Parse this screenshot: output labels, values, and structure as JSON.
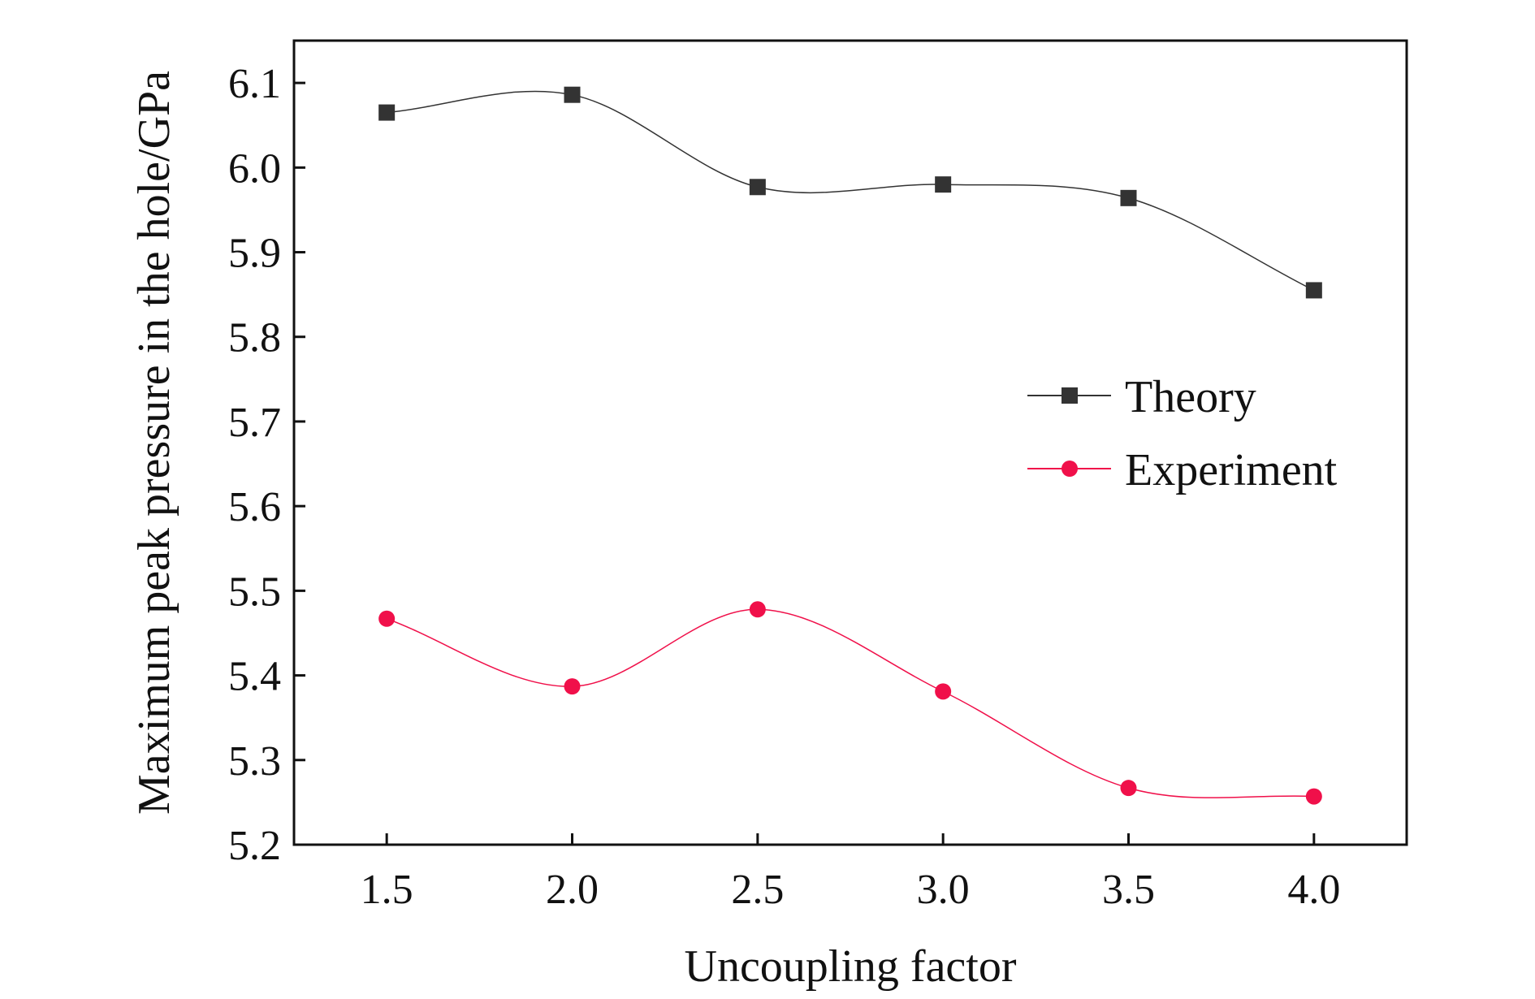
{
  "chart_data": {
    "type": "line",
    "xlabel": "Uncoupling factor",
    "ylabel": "Maximum peak pressure in the hole/GPa",
    "xlim": [
      1.25,
      4.25
    ],
    "ylim": [
      5.2,
      6.15
    ],
    "xticks": [
      "1.5",
      "2.0",
      "2.5",
      "3.0",
      "3.5",
      "4.0"
    ],
    "yticks": [
      "5.2",
      "5.3",
      "5.4",
      "5.5",
      "5.6",
      "5.7",
      "5.8",
      "5.9",
      "6.0",
      "6.1"
    ],
    "x": [
      1.5,
      2.0,
      2.5,
      3.0,
      3.5,
      4.0
    ],
    "grid": false,
    "legend_position": "right",
    "smooth_lines": true,
    "series": [
      {
        "name": "Theory",
        "marker": "square",
        "color": "#333333",
        "values": [
          6.065,
          6.086,
          5.977,
          5.98,
          5.964,
          5.855
        ]
      },
      {
        "name": "Experiment",
        "marker": "circle",
        "color": "#f0104a",
        "values": [
          5.467,
          5.387,
          5.478,
          5.381,
          5.267,
          5.257
        ]
      }
    ]
  }
}
